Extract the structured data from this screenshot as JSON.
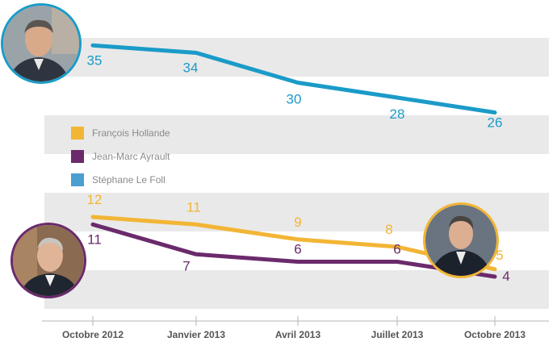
{
  "chart_data": {
    "type": "line",
    "categories": [
      "Octobre 2012",
      "Janvier 2013",
      "Avril 2013",
      "Juillet 2013",
      "Octobre 2013"
    ],
    "series": [
      {
        "name": "Stéphane Le Foll",
        "color": "#1a9bc8",
        "values": [
          35,
          34,
          30,
          28,
          26
        ]
      },
      {
        "name": "François Hollande",
        "color": "#f2b535",
        "values": [
          12,
          11,
          9,
          8,
          5
        ]
      },
      {
        "name": "Jean-Marc Ayrault",
        "color": "#6b2a6b",
        "values": [
          11,
          7,
          6,
          6,
          4
        ]
      }
    ],
    "legend": [
      {
        "label": "François Hollande",
        "color": "#f2b535"
      },
      {
        "label": "Jean-Marc Ayrault",
        "color": "#6b2a6b"
      },
      {
        "label": "Stéphane Le Foll",
        "color": "#4a9fd0"
      }
    ],
    "ylim": [
      0,
      38
    ],
    "grid": "horizontal bands",
    "legend_placement": "middle-left"
  },
  "photos": [
    {
      "icon": "stephane-le-foll-photo"
    },
    {
      "icon": "jean-marc-ayrault-photo"
    },
    {
      "icon": "francois-hollande-photo"
    }
  ]
}
